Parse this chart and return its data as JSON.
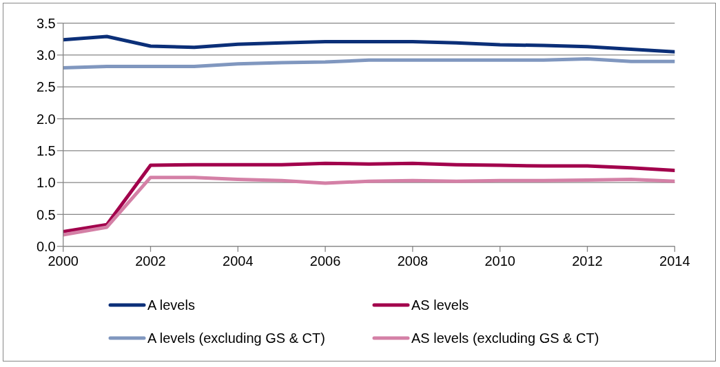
{
  "chart_data": {
    "type": "line",
    "x": [
      2000,
      2001,
      2002,
      2003,
      2004,
      2005,
      2006,
      2007,
      2008,
      2009,
      2010,
      2011,
      2012,
      2013,
      2014
    ],
    "series": [
      {
        "name": "A levels",
        "color": "#0b2f78",
        "values": [
          3.24,
          3.29,
          3.14,
          3.12,
          3.17,
          3.19,
          3.21,
          3.21,
          3.21,
          3.19,
          3.16,
          3.15,
          3.13,
          3.09,
          3.05
        ]
      },
      {
        "name": "AS levels",
        "color": "#a2004c",
        "values": [
          0.23,
          0.34,
          1.27,
          1.28,
          1.28,
          1.28,
          1.3,
          1.29,
          1.3,
          1.28,
          1.27,
          1.26,
          1.26,
          1.23,
          1.19
        ]
      },
      {
        "name": "A levels (excluding GS & CT)",
        "color": "#8097bf",
        "values": [
          2.8,
          2.82,
          2.82,
          2.82,
          2.86,
          2.88,
          2.89,
          2.92,
          2.92,
          2.92,
          2.92,
          2.92,
          2.94,
          2.9,
          2.9
        ]
      },
      {
        "name": "AS levels (excluding GS & CT)",
        "color": "#d480a6",
        "values": [
          0.18,
          0.3,
          1.08,
          1.08,
          1.05,
          1.03,
          0.99,
          1.02,
          1.03,
          1.02,
          1.03,
          1.03,
          1.04,
          1.05,
          1.02
        ]
      }
    ],
    "xlim": [
      2000,
      2014
    ],
    "xticks": [
      2000,
      2002,
      2004,
      2006,
      2008,
      2010,
      2012,
      2014
    ],
    "ylim": [
      0,
      3.5
    ],
    "yticks": [
      {
        "value": 0,
        "label": "0.0"
      },
      0.5,
      {
        "value": 1,
        "label": "1.0"
      },
      1.5,
      {
        "value": 2,
        "label": "2.0"
      },
      2.5,
      {
        "value": 3,
        "label": "3.0"
      },
      3.5
    ],
    "grid": "y",
    "legend": "bottom"
  }
}
